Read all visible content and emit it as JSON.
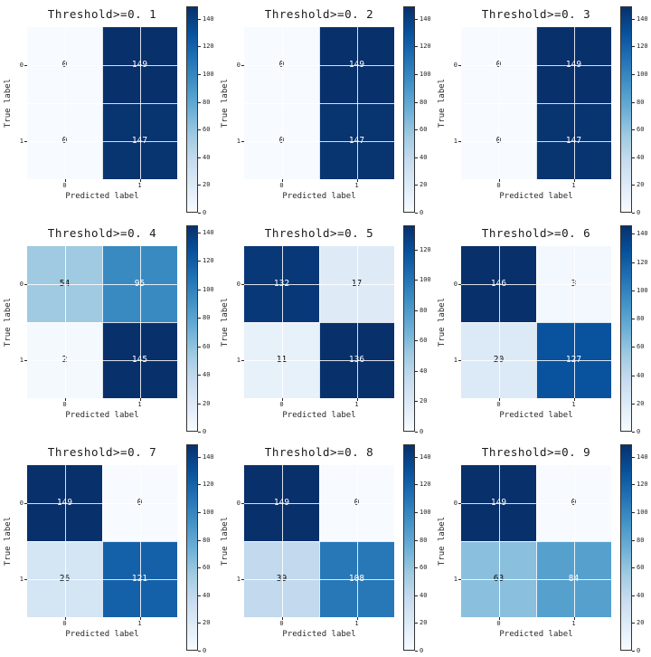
{
  "chart_data": {
    "type": "heatmap",
    "subtype": "confusion-matrix-grid",
    "colormap": "Blues",
    "grid_layout": {
      "rows": 3,
      "cols": 3
    },
    "xlabel": "Predicted label",
    "ylabel": "True label",
    "x_ticklabels": [
      "0",
      "1"
    ],
    "y_ticklabels": [
      "0",
      "1"
    ],
    "colorbar": {
      "min": 0,
      "tick_step": 20
    },
    "panels": [
      {
        "title": "Threshold>=0. 1",
        "matrix": [
          [
            0,
            149
          ],
          [
            0,
            147
          ]
        ],
        "colorbar_ticks": [
          0,
          20,
          40,
          60,
          80,
          100,
          120,
          140
        ]
      },
      {
        "title": "Threshold>=0. 2",
        "matrix": [
          [
            0,
            149
          ],
          [
            0,
            147
          ]
        ],
        "colorbar_ticks": [
          0,
          20,
          40,
          60,
          80,
          100,
          120,
          140
        ]
      },
      {
        "title": "Threshold>=0. 3",
        "matrix": [
          [
            0,
            149
          ],
          [
            0,
            147
          ]
        ],
        "colorbar_ticks": [
          0,
          20,
          40,
          60,
          80,
          100,
          120,
          140
        ]
      },
      {
        "title": "Threshold>=0. 4",
        "matrix": [
          [
            54,
            95
          ],
          [
            2,
            145
          ]
        ],
        "colorbar_ticks": [
          0,
          20,
          40,
          60,
          80,
          100,
          120,
          140
        ]
      },
      {
        "title": "Threshold>=0. 5",
        "matrix": [
          [
            132,
            17
          ],
          [
            11,
            136
          ]
        ],
        "colorbar_ticks": [
          0,
          20,
          40,
          60,
          80,
          100,
          120
        ]
      },
      {
        "title": "Threshold>=0. 6",
        "matrix": [
          [
            146,
            3
          ],
          [
            20,
            127
          ]
        ],
        "colorbar_ticks": [
          0,
          20,
          40,
          60,
          80,
          100,
          120,
          140
        ]
      },
      {
        "title": "Threshold>=0. 7",
        "matrix": [
          [
            149,
            0
          ],
          [
            26,
            121
          ]
        ],
        "colorbar_ticks": [
          0,
          20,
          40,
          60,
          80,
          100,
          120,
          140
        ]
      },
      {
        "title": "Threshold>=0. 8",
        "matrix": [
          [
            149,
            0
          ],
          [
            39,
            108
          ]
        ],
        "colorbar_ticks": [
          0,
          20,
          40,
          60,
          80,
          100,
          120,
          140
        ]
      },
      {
        "title": "Threshold>=0. 9",
        "matrix": [
          [
            149,
            0
          ],
          [
            63,
            84
          ]
        ],
        "colorbar_ticks": [
          0,
          20,
          40,
          60,
          80,
          100,
          120,
          140
        ]
      }
    ],
    "colors": {
      "cmap_stops": [
        "#f7fbff",
        "#deebf7",
        "#c6dbef",
        "#9ecae1",
        "#6baed6",
        "#4292c6",
        "#2171b5",
        "#08519c",
        "#08306b"
      ],
      "cell_text_dark": "#111111",
      "cell_text_light": "#ffffff",
      "background": "#ffffff"
    }
  }
}
